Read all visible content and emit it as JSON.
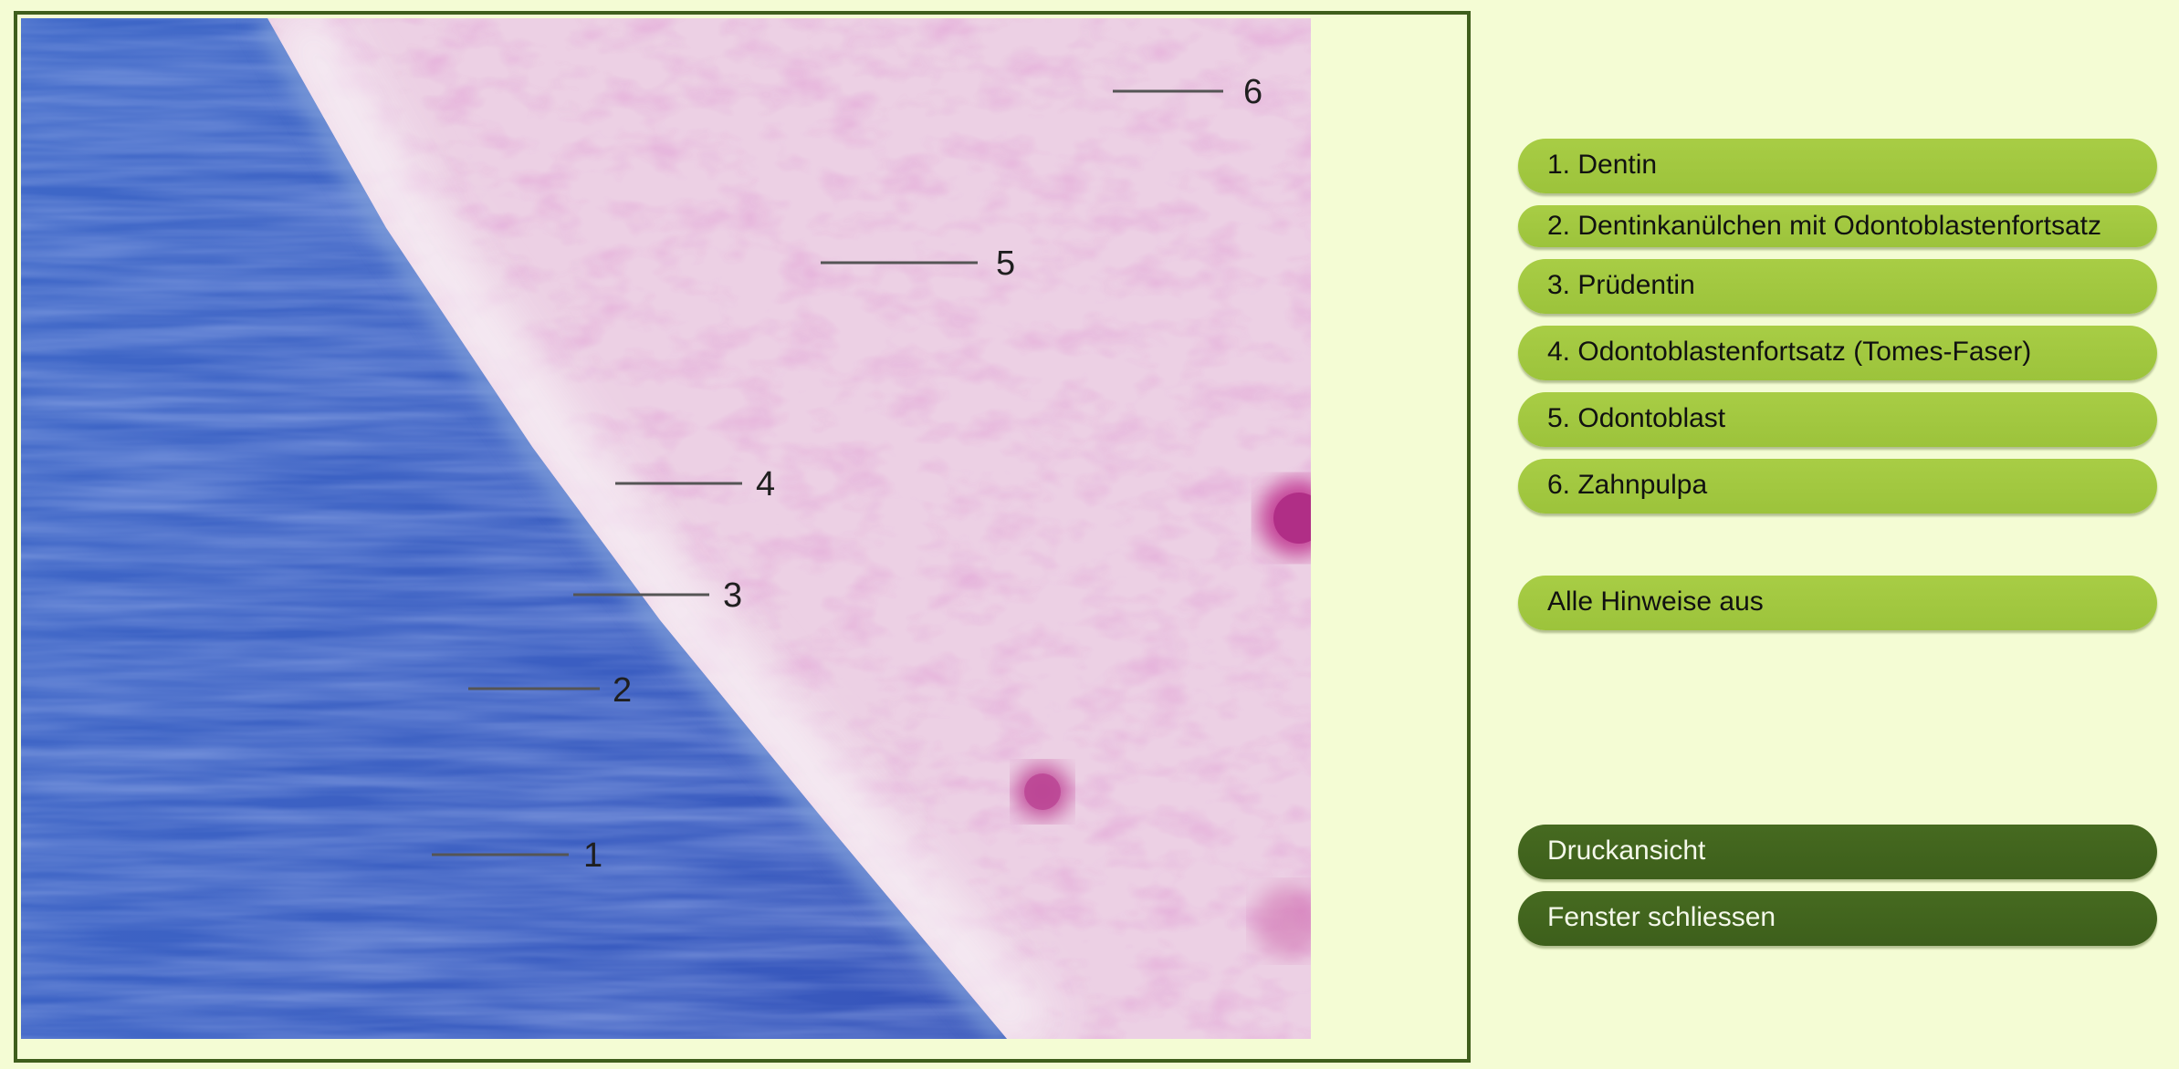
{
  "labels": {
    "l1": "1",
    "l2": "2",
    "l3": "3",
    "l4": "4",
    "l5": "5",
    "l6": "6"
  },
  "sidebar": {
    "items": [
      {
        "label": "1. Dentin"
      },
      {
        "label": "2. Dentinkanülchen mit Odontoblastenfortsatz"
      },
      {
        "label": "3. Prüdentin"
      },
      {
        "label": "4. Odontoblastenfortsatz (Tomes-Faser)"
      },
      {
        "label": "5. Odontoblast"
      },
      {
        "label": "6. Zahnpulpa"
      }
    ],
    "all_hints_off": "Alle Hinweise aus",
    "print_view": "Druckansicht",
    "close_window": "Fenster schliessen"
  },
  "colors": {
    "page_background": "#f4fcd4",
    "frame_border": "#3f5e1c",
    "button_light": "#a3c840",
    "button_dark": "#426520",
    "dentin_blue": "#3f64c4",
    "pulpa_pink": "#e8c3de"
  }
}
